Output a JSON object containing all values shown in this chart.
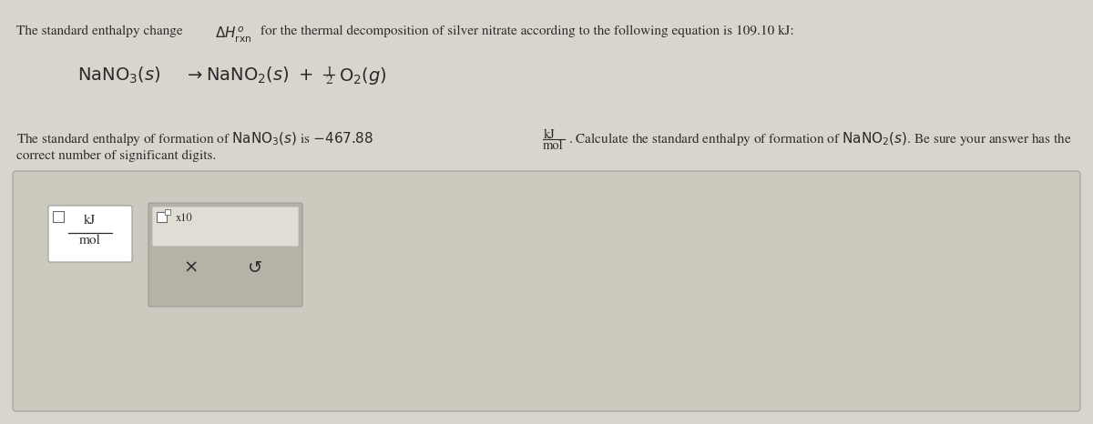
{
  "bg_color": "#d8d5cc",
  "panel_bg": "#c8c5bc",
  "text_color": "#2a2a2a",
  "white": "#ffffff",
  "line1_prefix": "The standard enthalpy change ",
  "line1_suffix": " for the thermal decomposition of silver nitrate according to the following equation is 109.10 kJ:",
  "line2_left": "NaNO$_3$(s)",
  "line2_right": "NaNO$_2$(s)",
  "line3_prefix": "The standard enthalpy of formation of NaNO",
  "line3_suffix_val": "is −467.88",
  "line3_mid": ". Calculate the standard enthalpy of formation of NaNO",
  "line3_end": ". Be sure your answer has the",
  "line4": "correct number of significant digits.",
  "kJ": "kJ",
  "mol": "mol",
  "x10_label": "x10",
  "x_btn": "×",
  "refresh_btn": "↺",
  "fs_main": 11,
  "fs_eq": 14
}
